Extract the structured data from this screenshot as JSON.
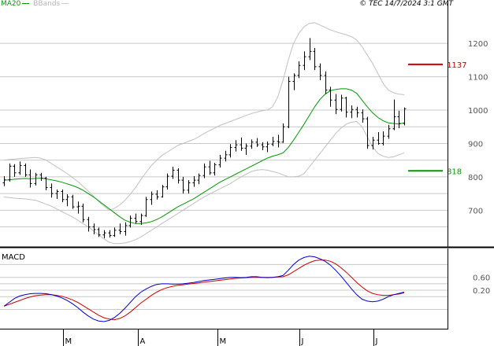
{
  "legend": {
    "ma_label": "MA20",
    "bb_label": "BBands"
  },
  "copyright": "© TEC 14/7/2024 3:1 GMT",
  "colors": {
    "ma": "#009900",
    "bbands": "#c0c0c0",
    "resistance": "#cc0000",
    "support": "#009900",
    "macd": "#0000cc",
    "signal": "#cc0000",
    "grid": "#c8c8c8",
    "bars": "#000000"
  },
  "chart_data": [
    {
      "type": "ohlc",
      "yticks": [
        "1200",
        "1100",
        "1000",
        "900",
        "800",
        "700"
      ],
      "ylim": [
        590,
        1330
      ],
      "xticks": [
        "M",
        "A",
        "M",
        "J",
        "J"
      ],
      "levels": [
        {
          "label": "1137",
          "value": 1137,
          "kind": "resistance"
        },
        {
          "label": "818",
          "value": 818,
          "kind": "support"
        }
      ],
      "ohlc": [
        {
          "o": 782,
          "h": 802,
          "l": 772,
          "c": 791
        },
        {
          "o": 791,
          "h": 840,
          "l": 786,
          "c": 832
        },
        {
          "o": 832,
          "h": 838,
          "l": 800,
          "c": 812
        },
        {
          "o": 812,
          "h": 846,
          "l": 806,
          "c": 834
        },
        {
          "o": 834,
          "h": 840,
          "l": 800,
          "c": 806
        },
        {
          "o": 806,
          "h": 822,
          "l": 768,
          "c": 780
        },
        {
          "o": 780,
          "h": 812,
          "l": 774,
          "c": 806
        },
        {
          "o": 806,
          "h": 812,
          "l": 788,
          "c": 796
        },
        {
          "o": 796,
          "h": 800,
          "l": 760,
          "c": 768
        },
        {
          "o": 768,
          "h": 780,
          "l": 738,
          "c": 750
        },
        {
          "o": 750,
          "h": 762,
          "l": 734,
          "c": 756
        },
        {
          "o": 756,
          "h": 762,
          "l": 724,
          "c": 732
        },
        {
          "o": 732,
          "h": 748,
          "l": 712,
          "c": 740
        },
        {
          "o": 740,
          "h": 746,
          "l": 704,
          "c": 710
        },
        {
          "o": 710,
          "h": 726,
          "l": 690,
          "c": 712
        },
        {
          "o": 712,
          "h": 720,
          "l": 664,
          "c": 672
        },
        {
          "o": 672,
          "h": 680,
          "l": 636,
          "c": 650
        },
        {
          "o": 650,
          "h": 660,
          "l": 628,
          "c": 642
        },
        {
          "o": 642,
          "h": 648,
          "l": 620,
          "c": 626
        },
        {
          "o": 626,
          "h": 640,
          "l": 616,
          "c": 632
        },
        {
          "o": 632,
          "h": 640,
          "l": 618,
          "c": 624
        },
        {
          "o": 624,
          "h": 648,
          "l": 620,
          "c": 640
        },
        {
          "o": 640,
          "h": 660,
          "l": 628,
          "c": 636
        },
        {
          "o": 636,
          "h": 664,
          "l": 624,
          "c": 654
        },
        {
          "o": 654,
          "h": 684,
          "l": 648,
          "c": 676
        },
        {
          "o": 676,
          "h": 690,
          "l": 660,
          "c": 666
        },
        {
          "o": 666,
          "h": 690,
          "l": 656,
          "c": 684
        },
        {
          "o": 684,
          "h": 740,
          "l": 680,
          "c": 732
        },
        {
          "o": 732,
          "h": 756,
          "l": 716,
          "c": 748
        },
        {
          "o": 748,
          "h": 760,
          "l": 732,
          "c": 740
        },
        {
          "o": 740,
          "h": 776,
          "l": 738,
          "c": 770
        },
        {
          "o": 770,
          "h": 810,
          "l": 762,
          "c": 802
        },
        {
          "o": 802,
          "h": 830,
          "l": 794,
          "c": 820
        },
        {
          "o": 820,
          "h": 826,
          "l": 780,
          "c": 790
        },
        {
          "o": 790,
          "h": 800,
          "l": 750,
          "c": 760
        },
        {
          "o": 760,
          "h": 790,
          "l": 750,
          "c": 782
        },
        {
          "o": 782,
          "h": 802,
          "l": 770,
          "c": 790
        },
        {
          "o": 790,
          "h": 810,
          "l": 778,
          "c": 804
        },
        {
          "o": 804,
          "h": 840,
          "l": 796,
          "c": 830
        },
        {
          "o": 830,
          "h": 848,
          "l": 806,
          "c": 812
        },
        {
          "o": 812,
          "h": 842,
          "l": 804,
          "c": 836
        },
        {
          "o": 836,
          "h": 866,
          "l": 828,
          "c": 856
        },
        {
          "o": 856,
          "h": 878,
          "l": 846,
          "c": 866
        },
        {
          "o": 866,
          "h": 898,
          "l": 858,
          "c": 888
        },
        {
          "o": 888,
          "h": 910,
          "l": 876,
          "c": 896
        },
        {
          "o": 896,
          "h": 918,
          "l": 878,
          "c": 886
        },
        {
          "o": 886,
          "h": 900,
          "l": 866,
          "c": 892
        },
        {
          "o": 892,
          "h": 912,
          "l": 884,
          "c": 904
        },
        {
          "o": 904,
          "h": 916,
          "l": 890,
          "c": 896
        },
        {
          "o": 896,
          "h": 904,
          "l": 880,
          "c": 890
        },
        {
          "o": 890,
          "h": 906,
          "l": 874,
          "c": 898
        },
        {
          "o": 898,
          "h": 920,
          "l": 892,
          "c": 906
        },
        {
          "o": 906,
          "h": 926,
          "l": 888,
          "c": 904
        },
        {
          "o": 904,
          "h": 960,
          "l": 902,
          "c": 950
        },
        {
          "o": 950,
          "h": 1100,
          "l": 946,
          "c": 1086
        },
        {
          "o": 1086,
          "h": 1110,
          "l": 1060,
          "c": 1104
        },
        {
          "o": 1104,
          "h": 1146,
          "l": 1096,
          "c": 1134
        },
        {
          "o": 1134,
          "h": 1176,
          "l": 1120,
          "c": 1160
        },
        {
          "o": 1160,
          "h": 1216,
          "l": 1150,
          "c": 1176
        },
        {
          "o": 1176,
          "h": 1186,
          "l": 1120,
          "c": 1130
        },
        {
          "o": 1130,
          "h": 1140,
          "l": 1090,
          "c": 1104
        },
        {
          "o": 1104,
          "h": 1116,
          "l": 1048,
          "c": 1060
        },
        {
          "o": 1060,
          "h": 1070,
          "l": 1010,
          "c": 1030
        },
        {
          "o": 1030,
          "h": 1048,
          "l": 988,
          "c": 1002
        },
        {
          "o": 1002,
          "h": 1046,
          "l": 996,
          "c": 1036
        },
        {
          "o": 1036,
          "h": 1040,
          "l": 978,
          "c": 994
        },
        {
          "o": 994,
          "h": 1014,
          "l": 976,
          "c": 1002
        },
        {
          "o": 1002,
          "h": 1010,
          "l": 978,
          "c": 992
        },
        {
          "o": 992,
          "h": 1002,
          "l": 962,
          "c": 974
        },
        {
          "o": 974,
          "h": 980,
          "l": 884,
          "c": 894
        },
        {
          "o": 894,
          "h": 920,
          "l": 882,
          "c": 910
        },
        {
          "o": 910,
          "h": 934,
          "l": 896,
          "c": 900
        },
        {
          "o": 900,
          "h": 936,
          "l": 894,
          "c": 922
        },
        {
          "o": 922,
          "h": 956,
          "l": 914,
          "c": 944
        },
        {
          "o": 944,
          "h": 1032,
          "l": 940,
          "c": 980
        },
        {
          "o": 980,
          "h": 998,
          "l": 946,
          "c": 960
        },
        {
          "o": 960,
          "h": 1008,
          "l": 954,
          "c": 1004
        }
      ],
      "ma20": [
        790,
        791,
        793,
        794,
        795,
        794,
        795,
        796,
        794,
        791,
        788,
        784,
        779,
        774,
        768,
        760,
        750,
        740,
        728,
        716,
        704,
        692,
        680,
        670,
        664,
        660,
        660,
        662,
        666,
        672,
        680,
        690,
        700,
        710,
        718,
        726,
        734,
        744,
        754,
        764,
        774,
        784,
        792,
        800,
        808,
        816,
        824,
        832,
        840,
        848,
        856,
        862,
        866,
        872,
        888,
        910,
        934,
        958,
        984,
        1010,
        1032,
        1048,
        1058,
        1062,
        1064,
        1064,
        1060,
        1050,
        1030,
        1010,
        992,
        978,
        968,
        962,
        960,
        958,
        962
      ],
      "bb_upper": [
        850,
        852,
        853,
        855,
        856,
        857,
        858,
        856,
        850,
        840,
        830,
        820,
        810,
        798,
        786,
        772,
        758,
        742,
        726,
        712,
        700,
        706,
        716,
        730,
        748,
        768,
        792,
        814,
        834,
        850,
        864,
        874,
        884,
        894,
        900,
        906,
        912,
        920,
        930,
        938,
        946,
        954,
        960,
        966,
        972,
        978,
        984,
        990,
        994,
        998,
        1000,
        1010,
        1040,
        1090,
        1150,
        1200,
        1230,
        1250,
        1260,
        1262,
        1255,
        1248,
        1240,
        1235,
        1230,
        1226,
        1220,
        1210,
        1190,
        1165,
        1140,
        1110,
        1080,
        1060,
        1052,
        1048,
        1046
      ],
      "bb_lower": [
        740,
        738,
        736,
        735,
        734,
        732,
        730,
        724,
        718,
        712,
        704,
        696,
        688,
        680,
        670,
        660,
        650,
        638,
        626,
        614,
        604,
        600,
        600,
        602,
        606,
        612,
        620,
        630,
        640,
        650,
        660,
        670,
        680,
        690,
        700,
        710,
        720,
        730,
        740,
        748,
        756,
        764,
        772,
        780,
        790,
        800,
        808,
        816,
        820,
        822,
        820,
        816,
        812,
        806,
        800,
        800,
        802,
        810,
        830,
        850,
        870,
        890,
        910,
        930,
        946,
        958,
        964,
        966,
        950,
        920,
        890,
        870,
        862,
        858,
        860,
        866,
        872
      ],
      "macd_panel": {
        "title": "MACD",
        "yticks": [
          "0.60",
          "0.20"
        ],
        "ylim": [
          -1.0,
          1.5
        ],
        "macd": [
          -0.3,
          -0.18,
          -0.06,
          0.02,
          0.06,
          0.09,
          0.1,
          0.1,
          0.09,
          0.06,
          0.02,
          -0.04,
          -0.12,
          -0.22,
          -0.34,
          -0.48,
          -0.6,
          -0.7,
          -0.76,
          -0.78,
          -0.74,
          -0.65,
          -0.52,
          -0.36,
          -0.18,
          0.0,
          0.14,
          0.24,
          0.32,
          0.38,
          0.4,
          0.4,
          0.39,
          0.39,
          0.4,
          0.42,
          0.44,
          0.47,
          0.5,
          0.52,
          0.54,
          0.56,
          0.58,
          0.6,
          0.6,
          0.59,
          0.6,
          0.62,
          0.62,
          0.6,
          0.59,
          0.6,
          0.62,
          0.66,
          0.82,
          1.0,
          1.14,
          1.22,
          1.26,
          1.24,
          1.18,
          1.1,
          0.98,
          0.82,
          0.64,
          0.44,
          0.24,
          0.06,
          -0.08,
          -0.14,
          -0.16,
          -0.14,
          -0.08,
          0.0,
          0.06,
          0.1,
          0.14
        ],
        "signal": [
          -0.3,
          -0.24,
          -0.18,
          -0.12,
          -0.06,
          -0.01,
          0.03,
          0.05,
          0.06,
          0.06,
          0.04,
          0.01,
          -0.04,
          -0.1,
          -0.18,
          -0.28,
          -0.38,
          -0.48,
          -0.58,
          -0.66,
          -0.7,
          -0.72,
          -0.68,
          -0.6,
          -0.48,
          -0.34,
          -0.2,
          -0.08,
          0.04,
          0.14,
          0.22,
          0.28,
          0.32,
          0.35,
          0.37,
          0.39,
          0.41,
          0.43,
          0.45,
          0.47,
          0.49,
          0.51,
          0.53,
          0.55,
          0.57,
          0.58,
          0.59,
          0.6,
          0.6,
          0.6,
          0.6,
          0.6,
          0.61,
          0.62,
          0.68,
          0.78,
          0.88,
          0.98,
          1.06,
          1.12,
          1.14,
          1.14,
          1.1,
          1.02,
          0.9,
          0.76,
          0.6,
          0.44,
          0.3,
          0.18,
          0.1,
          0.06,
          0.04,
          0.04,
          0.06,
          0.08,
          0.12
        ]
      }
    }
  ]
}
